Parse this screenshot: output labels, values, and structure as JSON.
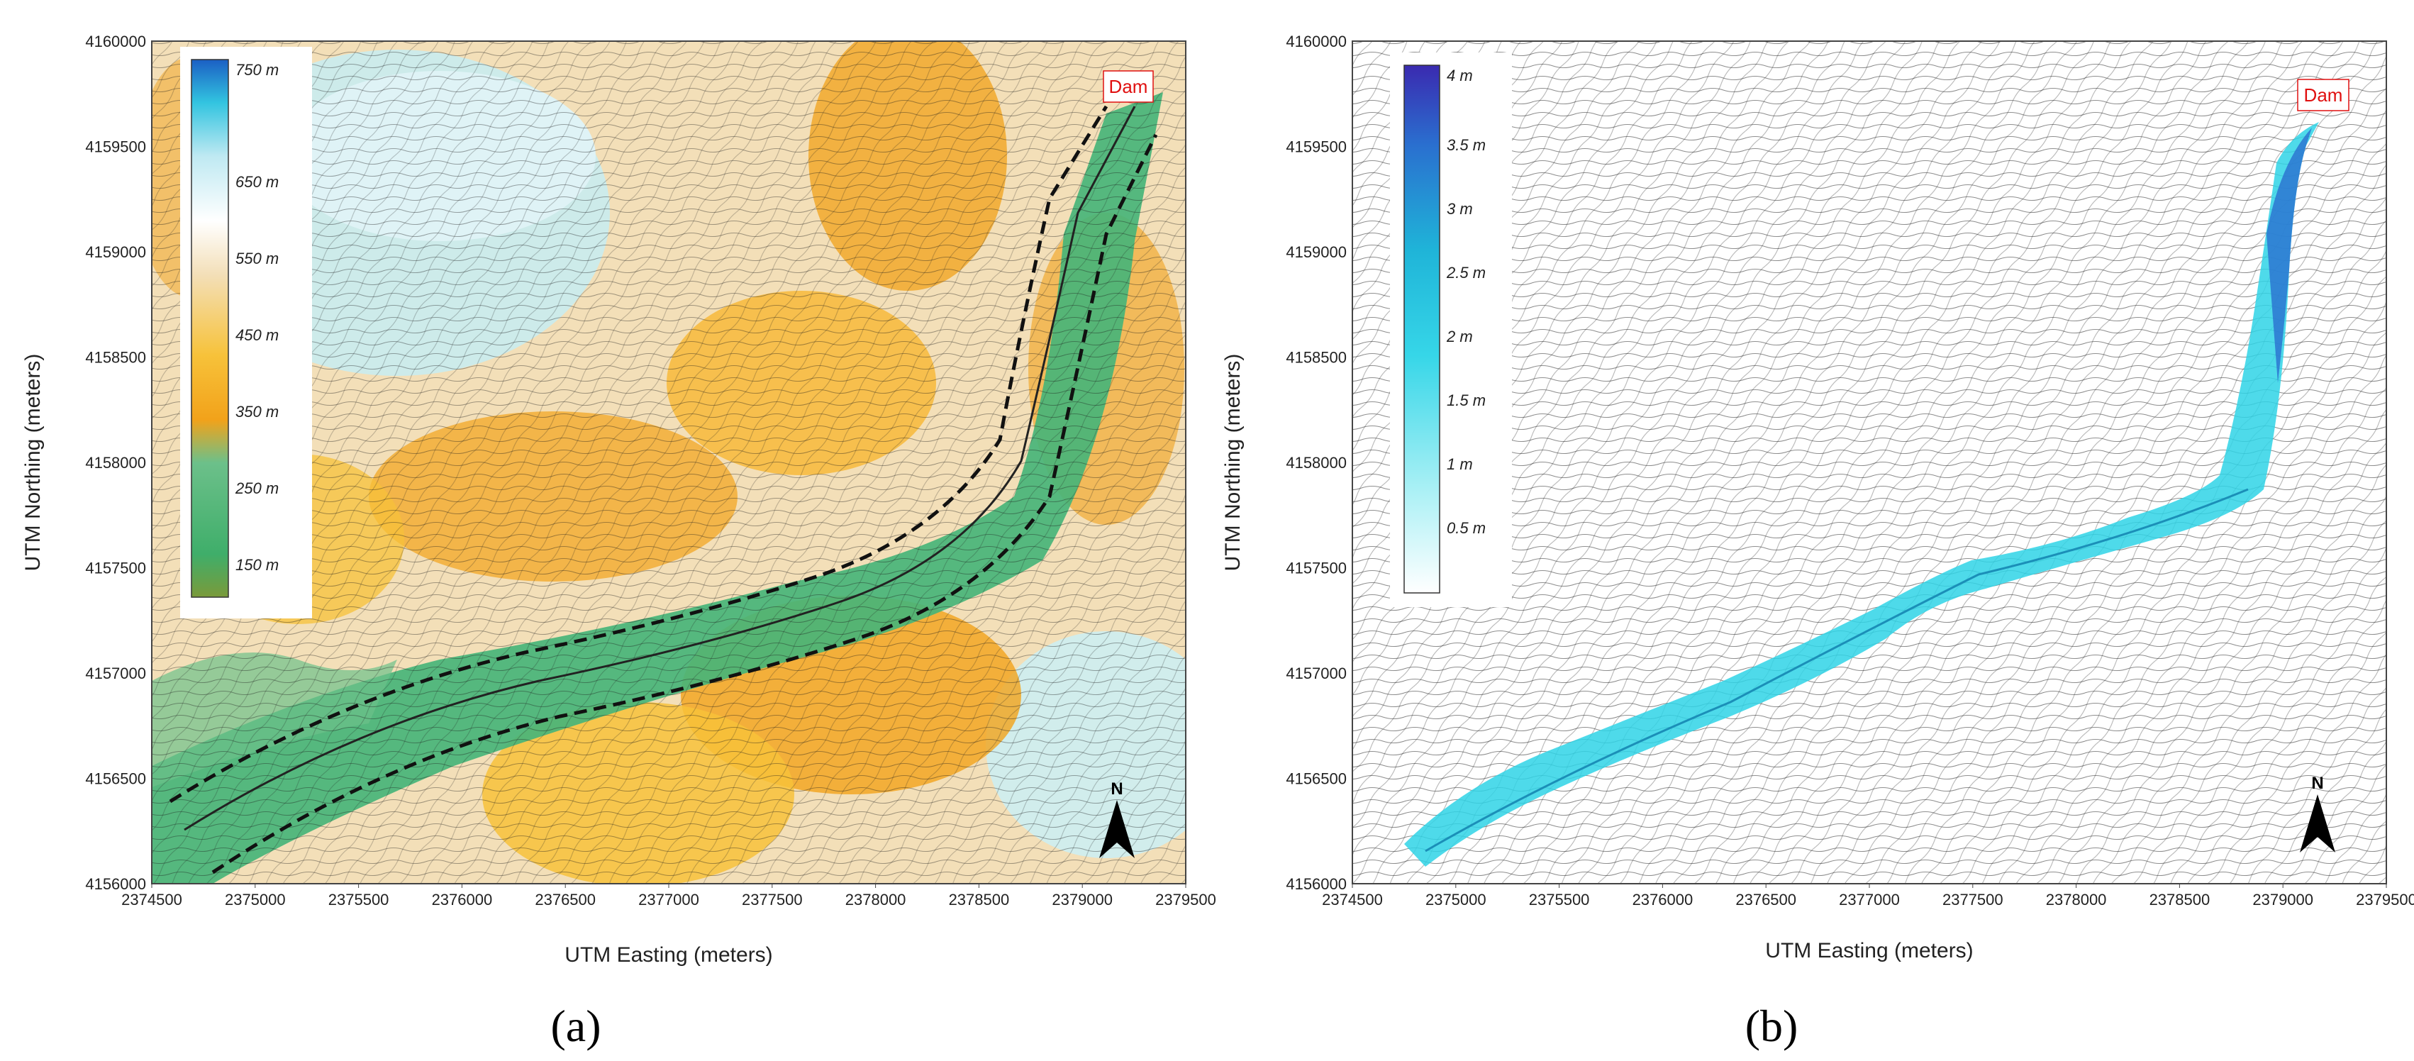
{
  "panels": [
    {
      "id": "a",
      "label": "(a)",
      "x_axis_title": "UTM Easting (meters)",
      "y_axis_title": "UTM Northing (meters)",
      "x_ticks": [
        "2374500",
        "2375000",
        "2375500",
        "2376000",
        "2376500",
        "2377000",
        "2377500",
        "2378000",
        "2378500",
        "2379000",
        "2379500"
      ],
      "y_ticks": [
        "4156000",
        "4156500",
        "4157000",
        "4157500",
        "4158000",
        "4158500",
        "4159000",
        "4159500",
        "4160000"
      ],
      "legend": {
        "labels": [
          "750 m",
          "650 m",
          "550 m",
          "450 m",
          "350 m",
          "250 m",
          "150 m"
        ]
      },
      "annotation": "Dam",
      "north_label": "N"
    },
    {
      "id": "b",
      "label": "(b)",
      "x_axis_title": "UTM Easting (meters)",
      "y_axis_title": "UTM Northing (meters)",
      "x_ticks": [
        "2374500",
        "2375000",
        "2375500",
        "2376000",
        "2376500",
        "2377000",
        "2377500",
        "2378000",
        "2378500",
        "2379000",
        "2379500"
      ],
      "y_ticks": [
        "4156000",
        "4156500",
        "4157000",
        "4157500",
        "4158000",
        "4158500",
        "4159000",
        "4159500",
        "4160000"
      ],
      "legend": {
        "labels": [
          "4 m",
          "3.5 m",
          "3 m",
          "2.5 m",
          "2 m",
          "1.5 m",
          "1 m",
          "0.5 m"
        ]
      },
      "annotation": "Dam",
      "north_label": "N"
    }
  ],
  "colors": {
    "elevation_ramp": [
      "#7a9a3a",
      "#3fae6a",
      "#6cc08a",
      "#f2a21a",
      "#f7c23a",
      "#f3dfb8",
      "#ffffff",
      "#bfe9f2",
      "#32c4e0",
      "#1b5fc4"
    ],
    "depth_ramp": [
      "#ffffff",
      "#a8f0f5",
      "#36d6e8",
      "#1fb4d8",
      "#2a6fcf",
      "#3a2ab0"
    ],
    "dam_text": "#e01010",
    "contour": "#1a1a1a"
  }
}
